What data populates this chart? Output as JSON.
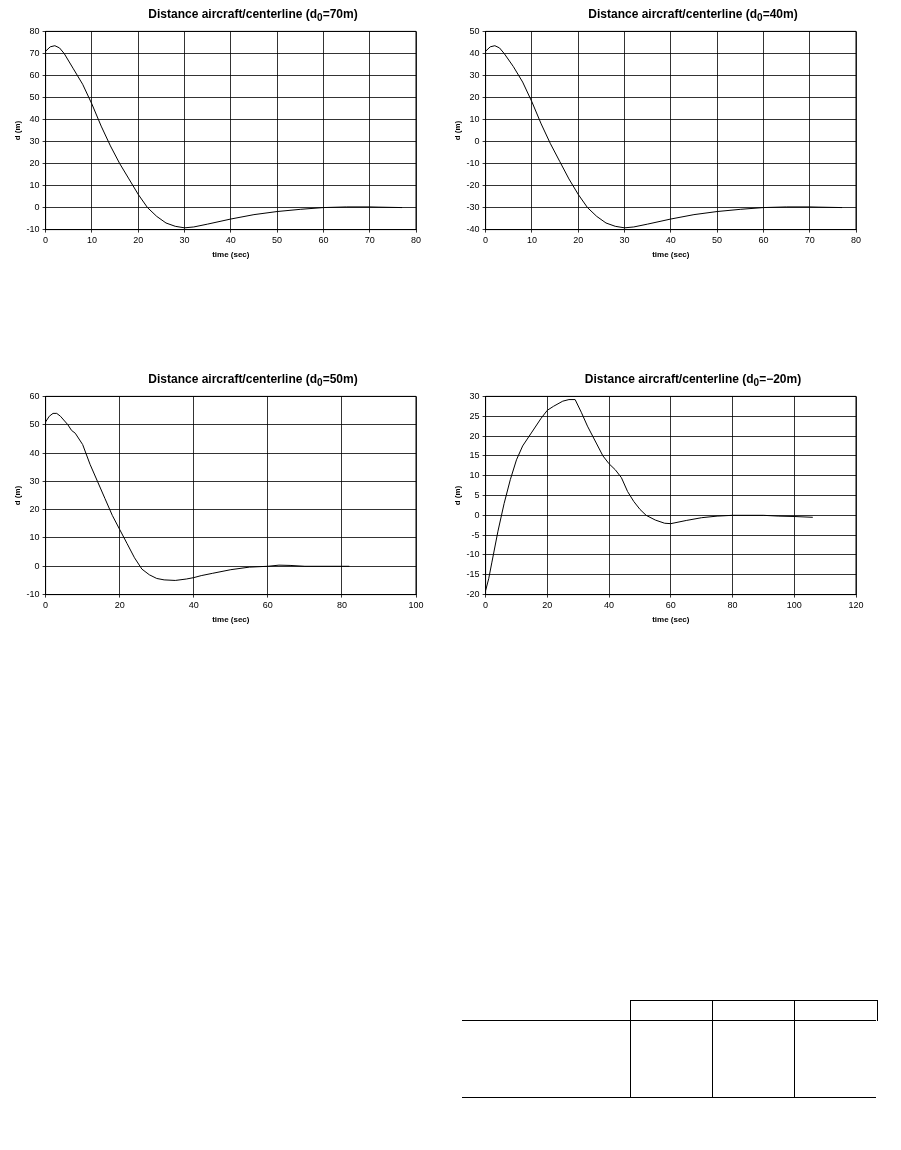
{
  "chart_data": [
    {
      "type": "line",
      "title": "Distance aircraft/centerline (d$_{0}$=70m)",
      "xlabel": "time (sec)",
      "ylabel": "d (m)",
      "xlim": [
        0,
        80
      ],
      "xticks": [
        0,
        10,
        20,
        30,
        40,
        50,
        60,
        70,
        80
      ],
      "ylim": [
        -10,
        80
      ],
      "yticks": [
        -10,
        0,
        10,
        20,
        30,
        40,
        50,
        60,
        70,
        80
      ],
      "grid": true,
      "marker": "none",
      "line_style": "solid",
      "x": [
        0,
        1,
        2,
        3,
        4,
        6,
        8,
        10,
        12,
        14,
        16,
        18,
        20,
        22,
        24,
        26,
        28,
        30,
        32,
        35,
        40,
        45,
        50,
        55,
        60,
        65,
        70,
        72,
        77
      ],
      "series": [
        {
          "color": "#000000",
          "values": [
            71,
            73,
            73.5,
            72.5,
            70,
            63,
            56,
            47,
            37,
            28,
            20,
            13,
            6,
            0,
            -4,
            -7,
            -8.5,
            -9.2,
            -8.8,
            -7.5,
            -5.2,
            -3.2,
            -1.8,
            -0.8,
            0,
            0.3,
            0.3,
            0.2,
            0
          ]
        }
      ]
    },
    {
      "type": "line",
      "title": "Distance aircraft/centerline (d$_{0}$=40m)",
      "xlabel": "time (sec)",
      "ylabel": "d (m)",
      "xlim": [
        0,
        80
      ],
      "xticks": [
        0,
        10,
        20,
        30,
        40,
        50,
        60,
        70,
        80
      ],
      "ylim": [
        -40,
        50
      ],
      "yticks": [
        -40,
        -30,
        -20,
        -10,
        0,
        10,
        20,
        30,
        40,
        50
      ],
      "grid": true,
      "marker": "none",
      "line_style": "solid",
      "x": [
        0,
        1,
        2,
        3,
        4,
        6,
        8,
        10,
        12,
        14,
        16,
        18,
        20,
        22,
        24,
        26,
        28,
        30,
        32,
        35,
        40,
        45,
        50,
        55,
        60,
        65,
        70,
        72,
        77
      ],
      "series": [
        {
          "color": "#000000",
          "values": [
            41,
            43,
            43.5,
            42.5,
            40,
            34,
            27,
            18,
            8,
            -1,
            -9,
            -17,
            -24,
            -30,
            -34,
            -37,
            -38.5,
            -39.2,
            -38.8,
            -37.5,
            -35.2,
            -33.2,
            -31.8,
            -30.8,
            -30,
            -29.7,
            -29.7,
            -29.8,
            -30
          ]
        }
      ]
    },
    {
      "type": "line",
      "title": "Distance aircraft/centerline (d$_{0}$=50m)",
      "xlabel": "time (sec)",
      "ylabel": "d (m)",
      "xlim": [
        0,
        100
      ],
      "xticks": [
        0,
        20,
        40,
        60,
        80,
        100
      ],
      "ylim": [
        -10,
        60
      ],
      "yticks": [
        -10,
        0,
        10,
        20,
        30,
        40,
        50,
        60
      ],
      "grid": true,
      "marker": "none",
      "line_style": "solid",
      "x": [
        0,
        1,
        2,
        3,
        4,
        6,
        7,
        8,
        10,
        12,
        14,
        16,
        18,
        20,
        22,
        24,
        26,
        28,
        30,
        32,
        35,
        38,
        40,
        42,
        45,
        50,
        55,
        60,
        63,
        66,
        70,
        80,
        82
      ],
      "series": [
        {
          "color": "#000000",
          "values": [
            51,
            53,
            54,
            54,
            53,
            50,
            48,
            47,
            43,
            36,
            30,
            24,
            18,
            13,
            8,
            3,
            -1,
            -3,
            -4.3,
            -4.8,
            -5,
            -4.5,
            -4,
            -3.3,
            -2.5,
            -1.2,
            -0.3,
            0,
            0.4,
            0.3,
            0,
            0,
            0
          ]
        }
      ]
    },
    {
      "type": "line",
      "title": "Distance aircraft/centerline (d$_{0}$=−20m)",
      "xlabel": "time (sec)",
      "ylabel": "d (m)",
      "xlim": [
        0,
        120
      ],
      "xticks": [
        0,
        20,
        40,
        60,
        80,
        100,
        120
      ],
      "ylim": [
        -20,
        30
      ],
      "yticks": [
        -20,
        -15,
        -10,
        -5,
        0,
        5,
        10,
        15,
        20,
        25,
        30
      ],
      "grid": true,
      "marker": "none",
      "line_style": "solid",
      "x": [
        0,
        1,
        2,
        4,
        6,
        8,
        10,
        12,
        15,
        18,
        20,
        22,
        25,
        27,
        29,
        31,
        33,
        36,
        38,
        40,
        42,
        44,
        46,
        48,
        50,
        52,
        55,
        58,
        60,
        65,
        70,
        75,
        80,
        90,
        95,
        100,
        106
      ],
      "series": [
        {
          "color": "#000000",
          "values": [
            -19,
            -16,
            -12,
            -4,
            3,
            9,
            14,
            17.5,
            21,
            24.5,
            26.5,
            27.5,
            28.8,
            29.2,
            29.2,
            26,
            22.5,
            18,
            15,
            13,
            11.5,
            9.5,
            6,
            3.5,
            1.5,
            0,
            -1.2,
            -2,
            -2.1,
            -1.3,
            -0.6,
            -0.2,
            0,
            0,
            -0.2,
            -0.3,
            -0.5
          ]
        }
      ]
    }
  ]
}
